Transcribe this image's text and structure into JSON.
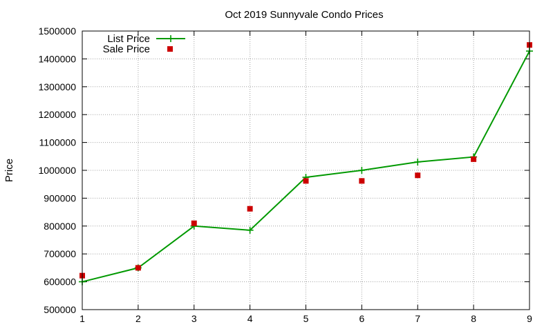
{
  "chart_data": {
    "type": "line",
    "title": "Oct 2019 Sunnyvale Condo Prices",
    "xlabel": "",
    "ylabel": "Price",
    "x": [
      1,
      2,
      3,
      4,
      5,
      6,
      7,
      8,
      9
    ],
    "xlim": [
      1,
      9
    ],
    "ylim": [
      500000,
      1500000
    ],
    "xticks": [
      "1",
      "2",
      "3",
      "4",
      "5",
      "6",
      "7",
      "8",
      "9"
    ],
    "yticks": [
      "500000",
      "600000",
      "700000",
      "800000",
      "900000",
      "1000000",
      "1100000",
      "1200000",
      "1300000",
      "1400000",
      "1500000"
    ],
    "grid": true,
    "legend_position": "top-left",
    "series": [
      {
        "name": "List Price",
        "style": "line-with-plus-markers",
        "color": "#009900",
        "values": [
          600000,
          650000,
          800000,
          785000,
          975000,
          1000000,
          1030000,
          1048000,
          1428000
        ]
      },
      {
        "name": "Sale Price",
        "style": "square-markers",
        "color": "#cc0000",
        "values": [
          622000,
          650000,
          810000,
          862000,
          962000,
          962000,
          982000,
          1040000,
          1450000
        ]
      }
    ]
  }
}
